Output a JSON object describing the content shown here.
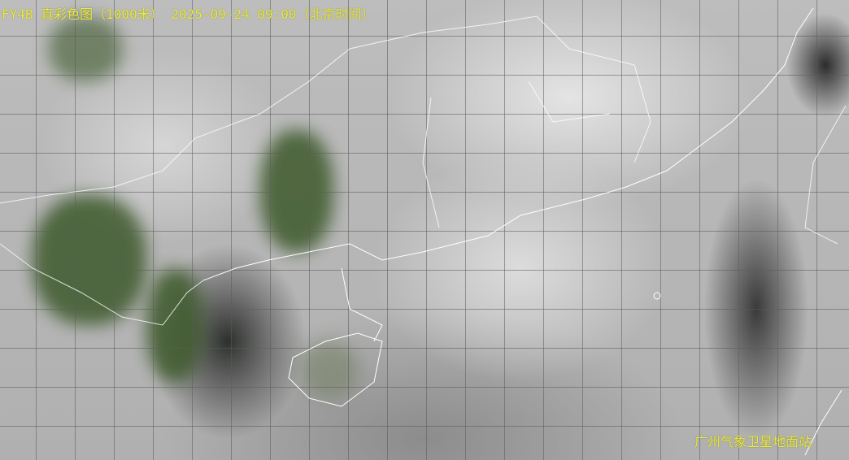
{
  "header": {
    "title": "FY4B 真彩色图（1000米） 2025-09-24 09:00（北京时间）"
  },
  "footer": {
    "station": "广州气象卫星地面站"
  },
  "colors": {
    "label": "#ecec3a",
    "land": "#3e5a2c",
    "coastline": "#ffffff"
  }
}
